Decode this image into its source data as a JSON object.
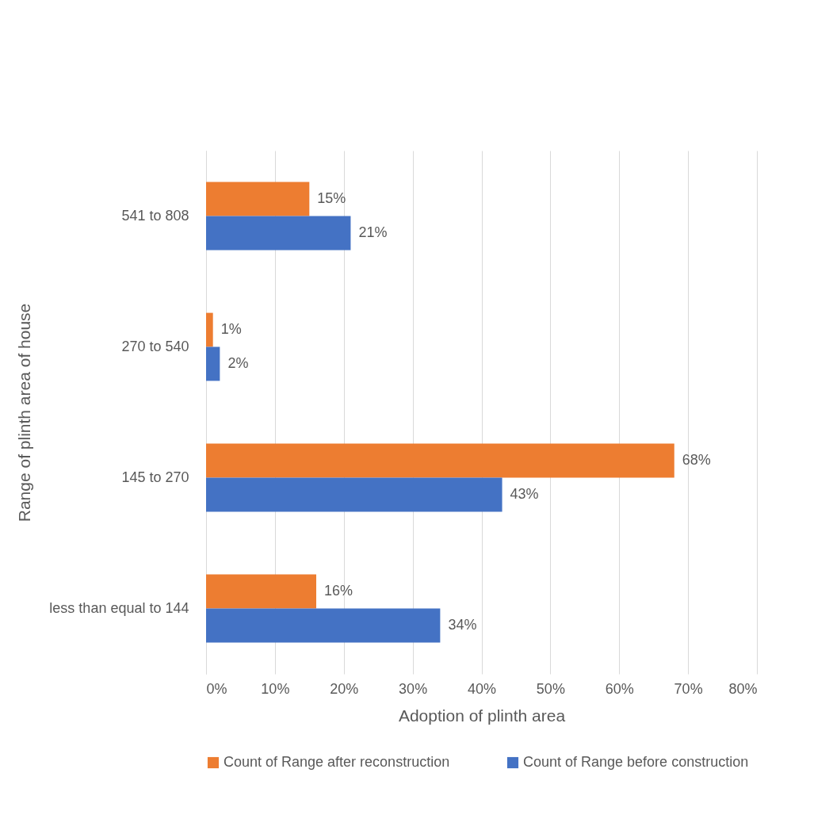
{
  "chart_data": {
    "type": "bar",
    "orientation": "horizontal",
    "xlabel": "Adoption of plinth area",
    "ylabel": "Range of plinth area of house",
    "categories": [
      "541 to 808",
      "270 to 540",
      "145 to 270",
      "less than equal to 144"
    ],
    "series": [
      {
        "name": "Count of Range after reconstruction",
        "color": "#ed7d31",
        "values": [
          15,
          1,
          68,
          16
        ],
        "value_labels": [
          "15%",
          "1%",
          "68%",
          "16%"
        ]
      },
      {
        "name": "Count of Range before construction",
        "color": "#4472c4",
        "values": [
          21,
          2,
          43,
          34
        ],
        "value_labels": [
          "21%",
          "2%",
          "43%",
          "34%"
        ]
      }
    ],
    "xlim": [
      0,
      80
    ],
    "xticks": [
      {
        "value": 0,
        "label": "0%"
      },
      {
        "value": 10,
        "label": "10%"
      },
      {
        "value": 20,
        "label": "20%"
      },
      {
        "value": 30,
        "label": "30%"
      },
      {
        "value": 40,
        "label": "40%"
      },
      {
        "value": 50,
        "label": "50%"
      },
      {
        "value": 60,
        "label": "60%"
      },
      {
        "value": 70,
        "label": "70%"
      },
      {
        "value": 80,
        "label": "80%"
      }
    ],
    "grid": "x",
    "legend": "bottom"
  }
}
